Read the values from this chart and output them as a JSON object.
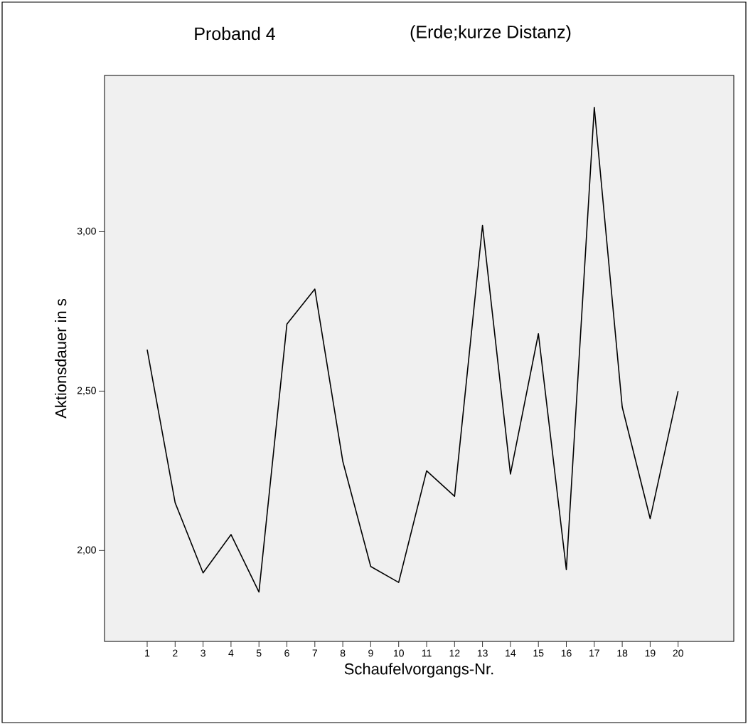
{
  "chart_data": {
    "type": "line",
    "title": "Proband 4",
    "subtitle": "(Erde;kurze Distanz)",
    "xlabel": "Schaufelvorgangs-Nr.",
    "ylabel": "Aktionsdauer in s",
    "categories": [
      "1",
      "2",
      "3",
      "4",
      "5",
      "6",
      "7",
      "8",
      "9",
      "10",
      "11",
      "12",
      "13",
      "14",
      "15",
      "16",
      "17",
      "18",
      "19",
      "20"
    ],
    "values": [
      2.63,
      2.15,
      1.93,
      2.05,
      1.87,
      2.71,
      2.82,
      2.28,
      1.95,
      1.9,
      2.25,
      2.17,
      3.02,
      2.24,
      2.68,
      1.94,
      3.39,
      2.45,
      2.1,
      2.5
    ],
    "color": "#000000",
    "marker": "none",
    "line_style": "solid",
    "ylim": [
      1.715,
      3.49
    ],
    "yticks": [
      {
        "value": 2.0,
        "label": "2,00"
      },
      {
        "value": 2.5,
        "label": "2,50"
      },
      {
        "value": 3.0,
        "label": "3,00"
      }
    ]
  }
}
